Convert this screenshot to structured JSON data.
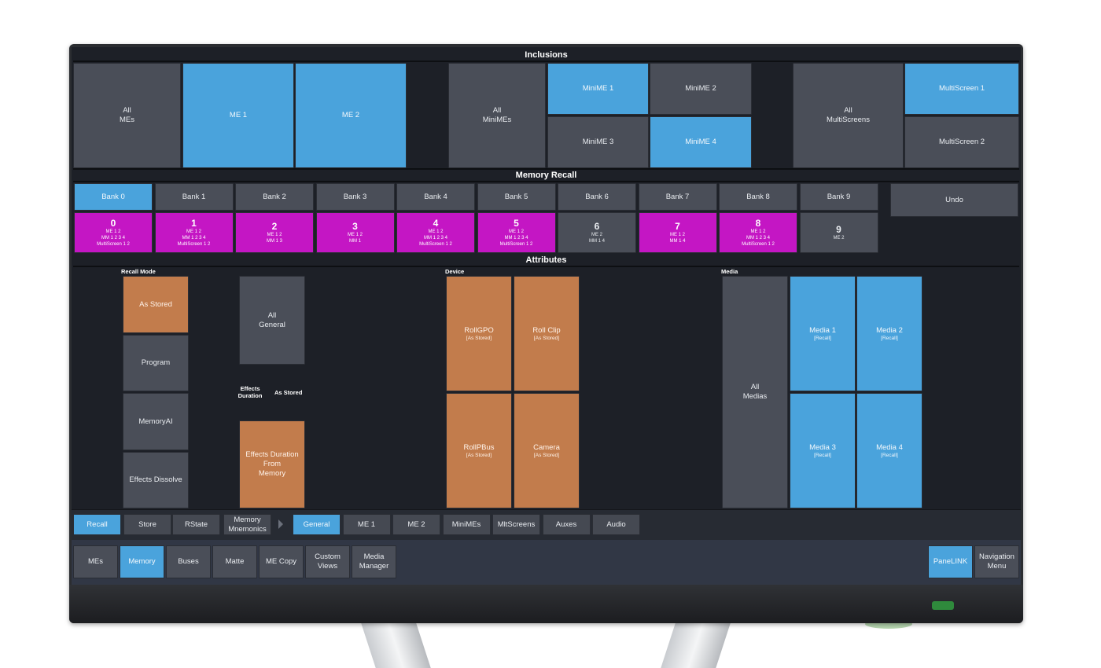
{
  "sections": {
    "inclusions": "Inclusions",
    "memory_recall": "Memory Recall",
    "attributes": "Attributes"
  },
  "inclusions": {
    "all_mes": "All\nMEs",
    "me1": "ME 1",
    "me2": "ME 2",
    "all_minimes": "All\nMiniMEs",
    "minime1": "MiniME 1",
    "minime2": "MiniME 2",
    "minime3": "MiniME 3",
    "minime4": "MiniME 4",
    "all_multiscreens": "All\nMultiScreens",
    "multiscreen1": "MultiScreen 1",
    "multiscreen2": "MultiScreen 2"
  },
  "banks": [
    "Bank 0",
    "Bank 1",
    "Bank 2",
    "Bank 3",
    "Bank 4",
    "Bank 5",
    "Bank 6",
    "Bank 7",
    "Bank 8",
    "Bank 9"
  ],
  "undo": "Undo",
  "memories": [
    {
      "num": "0",
      "lines": [
        "ME 1 2",
        "MM 1 2 3 4",
        "MultiScreen 1 2"
      ],
      "color": "magenta"
    },
    {
      "num": "1",
      "lines": [
        "ME 1 2",
        "MM 1 2 3 4",
        "MultiScreen 1 2"
      ],
      "color": "magenta"
    },
    {
      "num": "2",
      "lines": [
        "ME 1 2",
        "MM 1 3"
      ],
      "color": "magenta"
    },
    {
      "num": "3",
      "lines": [
        "ME 1 2",
        "MM 1"
      ],
      "color": "magenta"
    },
    {
      "num": "4",
      "lines": [
        "ME 1 2",
        "MM 1 2 3 4",
        "MultiScreen 1 2"
      ],
      "color": "magenta"
    },
    {
      "num": "5",
      "lines": [
        "ME 1 2",
        "MM 1 2 3 4",
        "MultiScreen 1 2"
      ],
      "color": "magenta"
    },
    {
      "num": "6",
      "lines": [
        "ME 2",
        "MM 1 4"
      ],
      "color": "gray"
    },
    {
      "num": "7",
      "lines": [
        "ME 1 2",
        "MM 1 4"
      ],
      "color": "magenta"
    },
    {
      "num": "8",
      "lines": [
        "ME 1 2",
        "MM 1 2 3 4",
        "MultiScreen 1 2"
      ],
      "color": "magenta"
    },
    {
      "num": "9",
      "lines": [
        "ME 2"
      ],
      "color": "gray"
    }
  ],
  "attributes": {
    "recall_mode_label": "Recall Mode",
    "recall_modes": [
      "As Stored",
      "Program",
      "MemoryAI",
      "Effects Dissolve"
    ],
    "all_general": "All\nGeneral",
    "effects_duration_label": "Effects\nDuration",
    "effects_duration_value": "As Stored",
    "effects_duration_from_memory": "Effects Duration\nFrom\nMemory",
    "device_label": "Device",
    "devices": [
      {
        "name": "RollGPO",
        "state": "[As Stored]"
      },
      {
        "name": "Roll Clip",
        "state": "[As Stored]"
      },
      {
        "name": "RollPBus",
        "state": "[As Stored]"
      },
      {
        "name": "Camera",
        "state": "[As Stored]"
      }
    ],
    "media_label": "Media",
    "all_medias": "All\nMedias",
    "medias": [
      {
        "name": "Media 1",
        "state": "[Recall]"
      },
      {
        "name": "Media 2",
        "state": "[Recall]"
      },
      {
        "name": "Media 3",
        "state": "[Recall]"
      },
      {
        "name": "Media 4",
        "state": "[Recall]"
      }
    ]
  },
  "mode_tabs": [
    "Recall",
    "Store",
    "RState",
    "Memory\nMnemonics"
  ],
  "category_tabs": [
    "General",
    "ME 1",
    "ME 2",
    "MiniMEs",
    "MltScreens",
    "Auxes",
    "Audio"
  ],
  "nav_tabs": [
    "MEs",
    "Memory",
    "Buses",
    "Matte",
    "ME Copy",
    "Custom\nViews",
    "Media\nManager"
  ],
  "panelink": "PaneLINK",
  "navigation_menu": "Navigation\nMenu",
  "colors": {
    "accent_blue": "#4aa3dc",
    "active_orange": "#c27c4c",
    "memory_magenta": "#c416c4",
    "button_gray": "#4a4e58",
    "background": "#1d2027"
  }
}
